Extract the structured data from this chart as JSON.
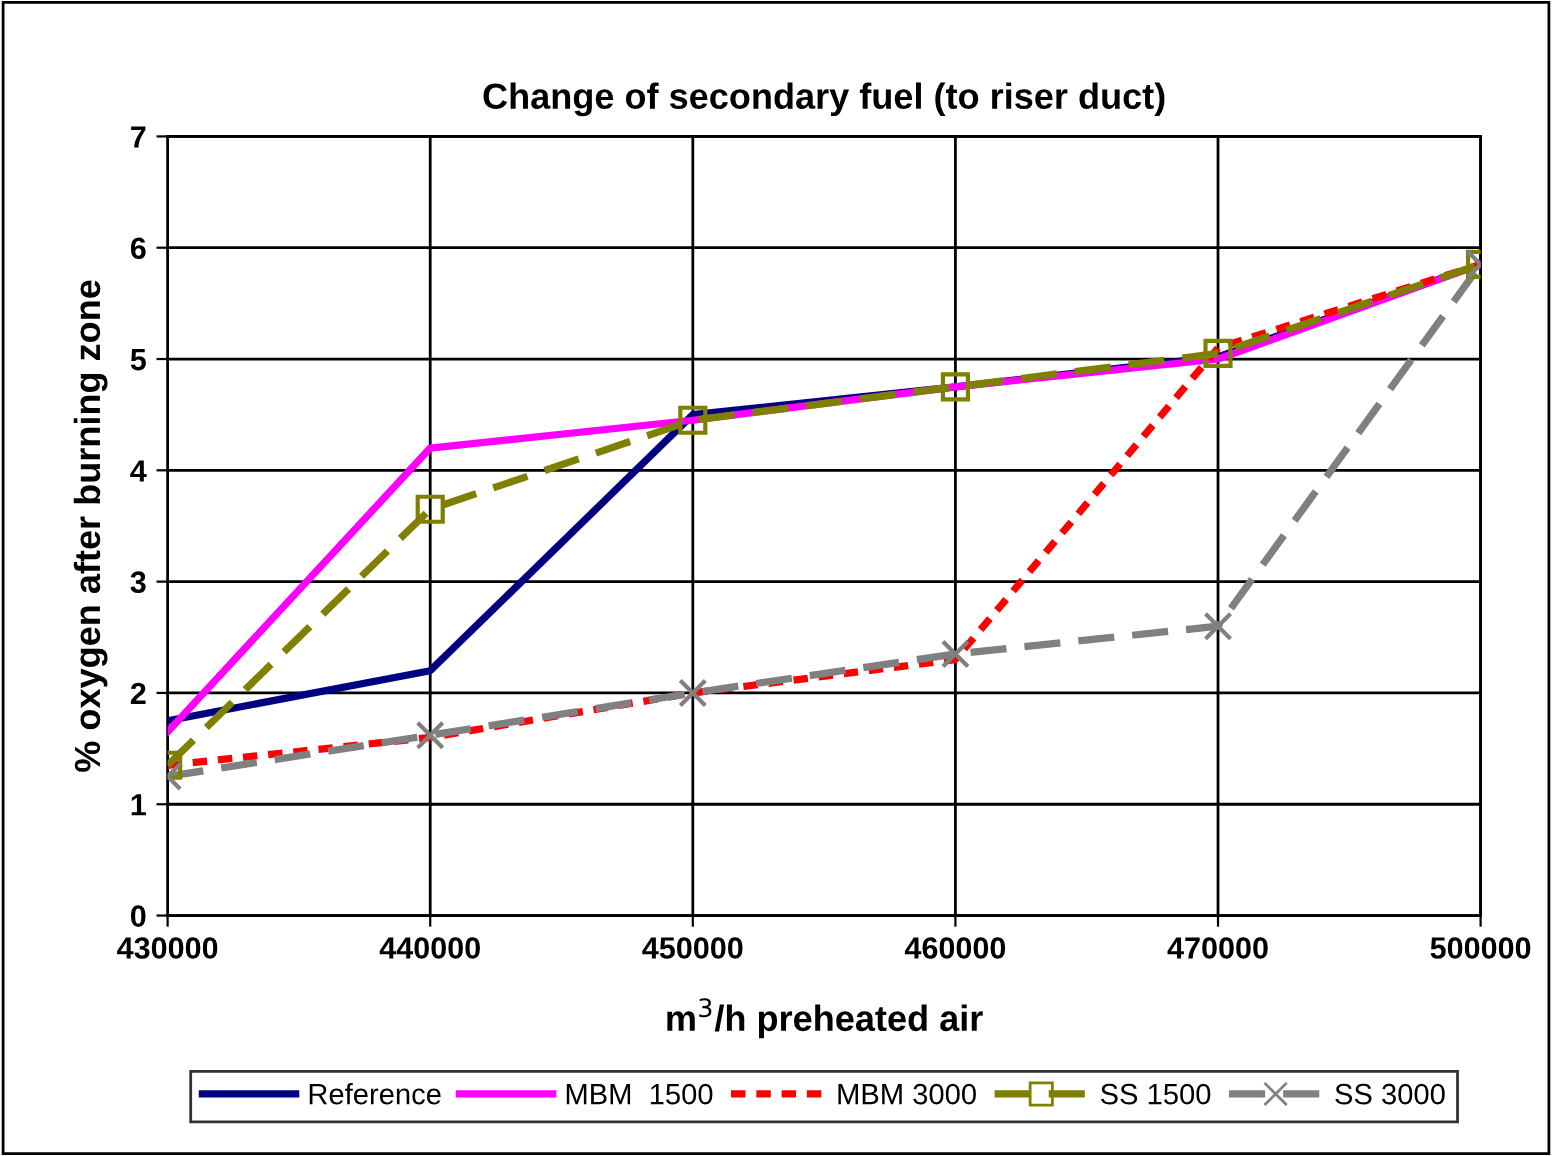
{
  "chart_data": {
    "type": "line",
    "title": "Change of secondary fuel (to riser duct)",
    "xlabel": "m$^{3}$/h preheated air",
    "ylabel": "% oxygen after burning zone",
    "categories": [
      "430000",
      "440000",
      "450000",
      "460000",
      "470000",
      "500000"
    ],
    "ylim": [
      0,
      7
    ],
    "yticks": [
      0,
      1,
      2,
      3,
      4,
      5,
      6,
      7
    ],
    "grid": true,
    "legend": "bottom",
    "series": [
      {
        "name": "Reference",
        "color": "#000080",
        "line_style": "solid",
        "marker": "none",
        "values": [
          1.75,
          2.2,
          4.5,
          4.75,
          5.02,
          5.85
        ]
      },
      {
        "name": "MBM  1500",
        "color": "#ff00ff",
        "line_style": "solid",
        "marker": "none",
        "values": [
          1.65,
          4.2,
          4.45,
          4.75,
          5.0,
          5.85
        ]
      },
      {
        "name": "MBM 3000",
        "color": "#ff0000",
        "line_style": "dotted",
        "marker": "none",
        "values": [
          1.35,
          1.6,
          2.0,
          2.3,
          5.1,
          5.85
        ]
      },
      {
        "name": "SS 1500",
        "color": "#808000",
        "line_style": "dashed",
        "marker": "square",
        "values": [
          1.35,
          3.65,
          4.45,
          4.75,
          5.05,
          5.85
        ]
      },
      {
        "name": "SS 3000",
        "color": "#808080",
        "line_style": "dashed",
        "marker": "cross",
        "values": [
          1.25,
          1.62,
          2.0,
          2.35,
          2.6,
          5.85
        ]
      }
    ]
  }
}
